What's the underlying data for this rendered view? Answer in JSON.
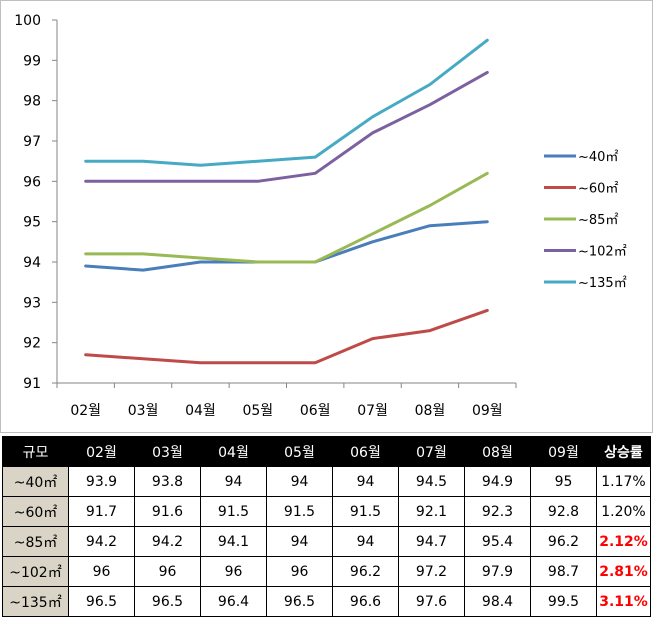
{
  "chart_data": {
    "type": "line",
    "categories": [
      "02월",
      "03월",
      "04월",
      "05월",
      "06월",
      "07월",
      "08월",
      "09월"
    ],
    "ylim": [
      91,
      100
    ],
    "yticks": [
      91,
      92,
      93,
      94,
      95,
      96,
      97,
      98,
      99,
      100
    ],
    "grid": false,
    "legend_position": "right",
    "series": [
      {
        "name": "~40㎡",
        "color": "#4a7ebb",
        "values": [
          93.9,
          93.8,
          94,
          94,
          94,
          94.5,
          94.9,
          95
        ]
      },
      {
        "name": "~60㎡",
        "color": "#be4b48",
        "values": [
          91.7,
          91.6,
          91.5,
          91.5,
          91.5,
          92.1,
          92.3,
          92.8
        ]
      },
      {
        "name": "~85㎡",
        "color": "#98b954",
        "values": [
          94.2,
          94.2,
          94.1,
          94,
          94,
          94.7,
          95.4,
          96.2
        ]
      },
      {
        "name": "~102㎡",
        "color": "#7d60a0",
        "values": [
          96,
          96,
          96,
          96,
          96.2,
          97.2,
          97.9,
          98.7
        ]
      },
      {
        "name": "~135㎡",
        "color": "#46aac5",
        "values": [
          96.5,
          96.5,
          96.4,
          96.5,
          96.6,
          97.6,
          98.4,
          99.5
        ]
      }
    ]
  },
  "table": {
    "headers": [
      "규모",
      "02월",
      "03월",
      "04월",
      "05월",
      "06월",
      "07월",
      "08월",
      "09월",
      "상승률"
    ],
    "rows": [
      {
        "size": "~40㎡",
        "values": [
          "93.9",
          "93.8",
          "94",
          "94",
          "94",
          "94.5",
          "94.9",
          "95"
        ],
        "rise": "1.17%",
        "highlight": false
      },
      {
        "size": "~60㎡",
        "values": [
          "91.7",
          "91.6",
          "91.5",
          "91.5",
          "91.5",
          "92.1",
          "92.3",
          "92.8"
        ],
        "rise": "1.20%",
        "highlight": false
      },
      {
        "size": "~85㎡",
        "values": [
          "94.2",
          "94.2",
          "94.1",
          "94",
          "94",
          "94.7",
          "95.4",
          "96.2"
        ],
        "rise": "2.12%",
        "highlight": true
      },
      {
        "size": "~102㎡",
        "values": [
          "96",
          "96",
          "96",
          "96",
          "96.2",
          "97.2",
          "97.9",
          "98.7"
        ],
        "rise": "2.81%",
        "highlight": true
      },
      {
        "size": "~135㎡",
        "values": [
          "96.5",
          "96.5",
          "96.4",
          "96.5",
          "96.6",
          "97.6",
          "98.4",
          "99.5"
        ],
        "rise": "3.11%",
        "highlight": true
      }
    ]
  }
}
